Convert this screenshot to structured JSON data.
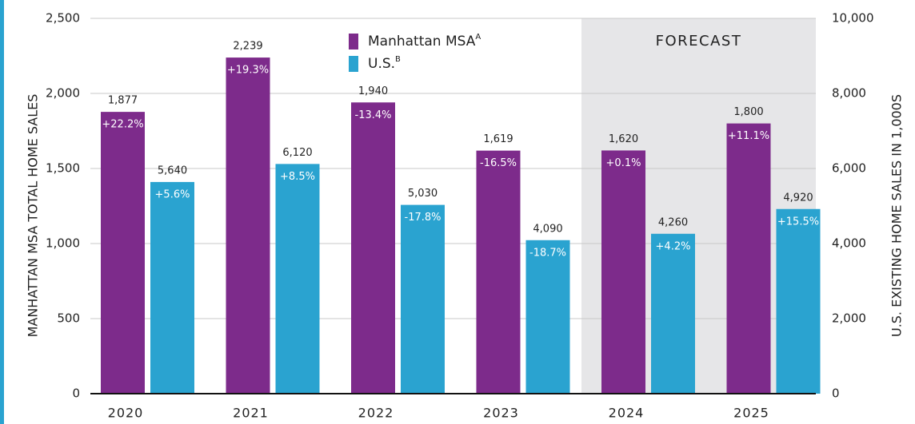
{
  "chart_data": {
    "type": "bar",
    "categories": [
      "2020",
      "2021",
      "2022",
      "2023",
      "2024",
      "2025"
    ],
    "forecast_label": "FORECAST",
    "forecast_from": "2024",
    "ylabel": "MANHATTAN MSA TOTAL HOME SALES",
    "y2label": "U.S. EXISTING HOME SALES IN 1,000S",
    "ylim": [
      0,
      2500
    ],
    "yticks": [
      0,
      500,
      {
        "value": 1000,
        "label": "1,000"
      },
      {
        "value": 1500,
        "label": "1,500"
      },
      {
        "value": 2000,
        "label": "2,000"
      },
      {
        "value": 2500,
        "label": "2,500"
      }
    ],
    "y2lim": [
      0,
      10000
    ],
    "y2ticks": [
      0,
      {
        "value": 2000,
        "label": "2,000"
      },
      {
        "value": 4000,
        "label": "4,000"
      },
      {
        "value": 6000,
        "label": "6,000"
      },
      {
        "value": 8000,
        "label": "8,000"
      },
      {
        "value": 10000,
        "label": "10,000"
      }
    ],
    "grid": true,
    "series": [
      {
        "name": "Manhattan MSA",
        "legend_sup": "A",
        "color": "#7d2b8b",
        "values": [
          1877,
          2239,
          1940,
          1619,
          1620,
          1800
        ],
        "value_labels": [
          "1,877",
          "2,239",
          "1,940",
          "1,619",
          "1,620",
          "1,800"
        ],
        "change_labels": [
          "+22.2%",
          "+19.3%",
          "-13.4%",
          "-16.5%",
          "+0.1%",
          "+11.1%"
        ]
      },
      {
        "name": "U.S.",
        "legend_sup": "B",
        "color": "#2aa3d0",
        "axis": "y2",
        "values": [
          5640,
          6120,
          5030,
          4090,
          4260,
          4920
        ],
        "value_labels": [
          "5,640",
          "6,120",
          "5,030",
          "4,090",
          "4,260",
          "4,920"
        ],
        "change_labels": [
          "+5.6%",
          "+8.5%",
          "-17.8%",
          "-18.7%",
          "+4.2%",
          "+15.5%"
        ]
      }
    ]
  }
}
